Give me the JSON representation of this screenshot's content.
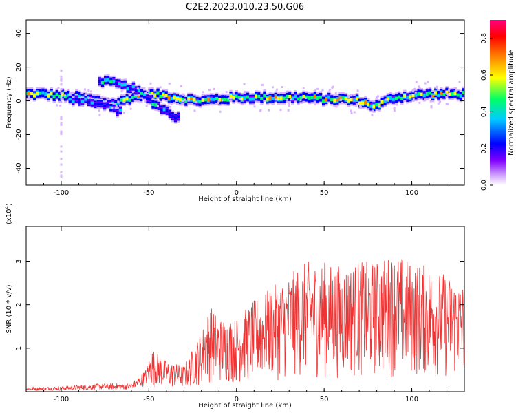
{
  "title": "C2E2.2023.010.23.50.G06",
  "colorbar": {
    "label": "Normalized spectral amplitude",
    "range": [
      0.0,
      0.9
    ],
    "ticks": [
      "0.0",
      "0.2",
      "0.4",
      "0.6",
      "0.8"
    ],
    "colors": [
      "#ffffff",
      "#d9b3ff",
      "#8000ff",
      "#0000ff",
      "#00ccff",
      "#00ff66",
      "#ffff00",
      "#ff8000",
      "#ff0000",
      "#ff0080"
    ]
  },
  "chart_data": [
    {
      "type": "heatmap",
      "xlabel": "Height of straight line (km)",
      "ylabel": "Frequency (Hz)",
      "xlim": [
        -120,
        130
      ],
      "ylim": [
        -50,
        48
      ],
      "xticks": [
        "-100",
        "-50",
        "0",
        "50",
        "100"
      ],
      "yticks": [
        "40",
        "20",
        "0",
        "-20",
        "-40"
      ],
      "main_band": {
        "x": [
          -120,
          -110,
          -100,
          -90,
          -80,
          -70,
          -60,
          -50,
          -40,
          -35,
          -30,
          -20,
          -10,
          0,
          10,
          20,
          30,
          40,
          50,
          60,
          70,
          75,
          80,
          90,
          100,
          110,
          120,
          130
        ],
        "y": [
          4,
          4,
          3,
          2,
          0,
          -2,
          2,
          4,
          3,
          2,
          1,
          0,
          1,
          2,
          2,
          2,
          2,
          2,
          1,
          1,
          0,
          -2,
          -3,
          2,
          3,
          4,
          4,
          4
        ]
      },
      "secondary_band": {
        "x": [
          -78,
          -72,
          -65,
          -60,
          -55,
          -50,
          -45,
          -40,
          -35,
          -32
        ],
        "y": [
          12,
          11,
          9,
          8,
          5,
          1,
          -3,
          -6,
          -9,
          -11
        ]
      },
      "lower_band": {
        "x": [
          -95,
          -85,
          -75,
          -70,
          -65
        ],
        "y": [
          1,
          0,
          -2,
          -5,
          -7
        ]
      }
    },
    {
      "type": "line",
      "xlabel": "Height of straight line (km)",
      "ylabel": "SNR (10 * v/v)",
      "multiplier": "(x10",
      "multiplier_exp": "4",
      "multiplier_close": ")",
      "xlim": [
        -120,
        130
      ],
      "ylim": [
        0,
        3.8
      ],
      "xticks": [
        "-100",
        "-50",
        "0",
        "50",
        "100"
      ],
      "yticks": [
        "1",
        "2",
        "3"
      ],
      "envelope": {
        "x": [
          -120,
          -100,
          -80,
          -60,
          -52,
          -48,
          -40,
          -30,
          -26,
          -20,
          -15,
          -10,
          0,
          10,
          20,
          30,
          40,
          50,
          60,
          70,
          80,
          90,
          100,
          110,
          120,
          130
        ],
        "y": [
          0.1,
          0.12,
          0.18,
          0.2,
          0.5,
          1.0,
          0.7,
          0.6,
          0.9,
          1.4,
          2.0,
          1.7,
          1.7,
          2.1,
          2.4,
          2.7,
          3.0,
          3.0,
          2.9,
          3.0,
          3.0,
          3.2,
          3.0,
          2.9,
          2.7,
          2.5
        ]
      },
      "series_color": "#ee3333"
    }
  ]
}
